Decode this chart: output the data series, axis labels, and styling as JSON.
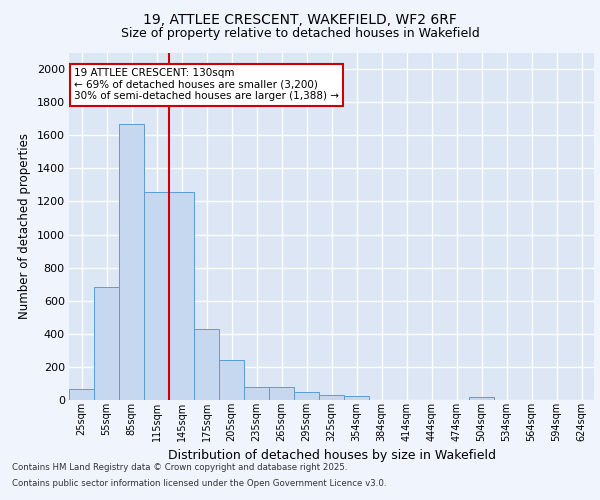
{
  "title_line1": "19, ATTLEE CRESCENT, WAKEFIELD, WF2 6RF",
  "title_line2": "Size of property relative to detached houses in Wakefield",
  "xlabel": "Distribution of detached houses by size in Wakefield",
  "ylabel": "Number of detached properties",
  "categories": [
    "25sqm",
    "55sqm",
    "85sqm",
    "115sqm",
    "145sqm",
    "175sqm",
    "205sqm",
    "235sqm",
    "265sqm",
    "295sqm",
    "325sqm",
    "354sqm",
    "384sqm",
    "414sqm",
    "444sqm",
    "474sqm",
    "504sqm",
    "534sqm",
    "564sqm",
    "594sqm",
    "624sqm"
  ],
  "values": [
    65,
    680,
    1670,
    1260,
    1260,
    430,
    240,
    80,
    80,
    50,
    30,
    25,
    0,
    0,
    0,
    0,
    20,
    0,
    0,
    0,
    0
  ],
  "bar_color": "#c5d8f0",
  "bar_edge_color": "#5b9bd5",
  "bg_color": "#dce6f5",
  "plot_bg_color": "#dce6f5",
  "fig_bg_color": "#f0f4fc",
  "grid_color": "#ffffff",
  "annotation_text": "19 ATTLEE CRESCENT: 130sqm\n← 69% of detached houses are smaller (3,200)\n30% of semi-detached houses are larger (1,388) →",
  "vline_x": 3.5,
  "vline_color": "#cc0000",
  "ylim": [
    0,
    2100
  ],
  "yticks": [
    0,
    200,
    400,
    600,
    800,
    1000,
    1200,
    1400,
    1600,
    1800,
    2000
  ],
  "footnote1": "Contains HM Land Registry data © Crown copyright and database right 2025.",
  "footnote2": "Contains public sector information licensed under the Open Government Licence v3.0."
}
